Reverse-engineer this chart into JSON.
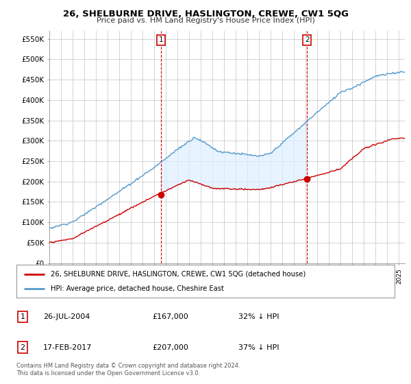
{
  "title": "26, SHELBURNE DRIVE, HASLINGTON, CREWE, CW1 5QG",
  "subtitle": "Price paid vs. HM Land Registry's House Price Index (HPI)",
  "ylabel_ticks": [
    "£0",
    "£50K",
    "£100K",
    "£150K",
    "£200K",
    "£250K",
    "£300K",
    "£350K",
    "£400K",
    "£450K",
    "£500K",
    "£550K"
  ],
  "ylim": [
    0,
    570000
  ],
  "ytick_values": [
    0,
    50000,
    100000,
    150000,
    200000,
    250000,
    300000,
    350000,
    400000,
    450000,
    500000,
    550000
  ],
  "legend_line1": "26, SHELBURNE DRIVE, HASLINGTON, CREWE, CW1 5QG (detached house)",
  "legend_line2": "HPI: Average price, detached house, Cheshire East",
  "legend_line1_color": "#cc0000",
  "legend_line2_color": "#5599cc",
  "shade_color": "#ddeeff",
  "annotation1_label": "1",
  "annotation1_date": "26-JUL-2004",
  "annotation1_price": "£167,000",
  "annotation1_hpi": "32% ↓ HPI",
  "annotation2_label": "2",
  "annotation2_date": "17-FEB-2017",
  "annotation2_price": "£207,000",
  "annotation2_hpi": "37% ↓ HPI",
  "footnote": "Contains HM Land Registry data © Crown copyright and database right 2024.\nThis data is licensed under the Open Government Licence v3.0.",
  "bg_color": "#ffffff",
  "plot_bg_color": "#ffffff",
  "grid_color": "#cccccc",
  "sale1_x": 2004.57,
  "sale1_y": 167000,
  "sale2_x": 2017.12,
  "sale2_y": 207000,
  "xmin": 1995,
  "xmax": 2025.5
}
